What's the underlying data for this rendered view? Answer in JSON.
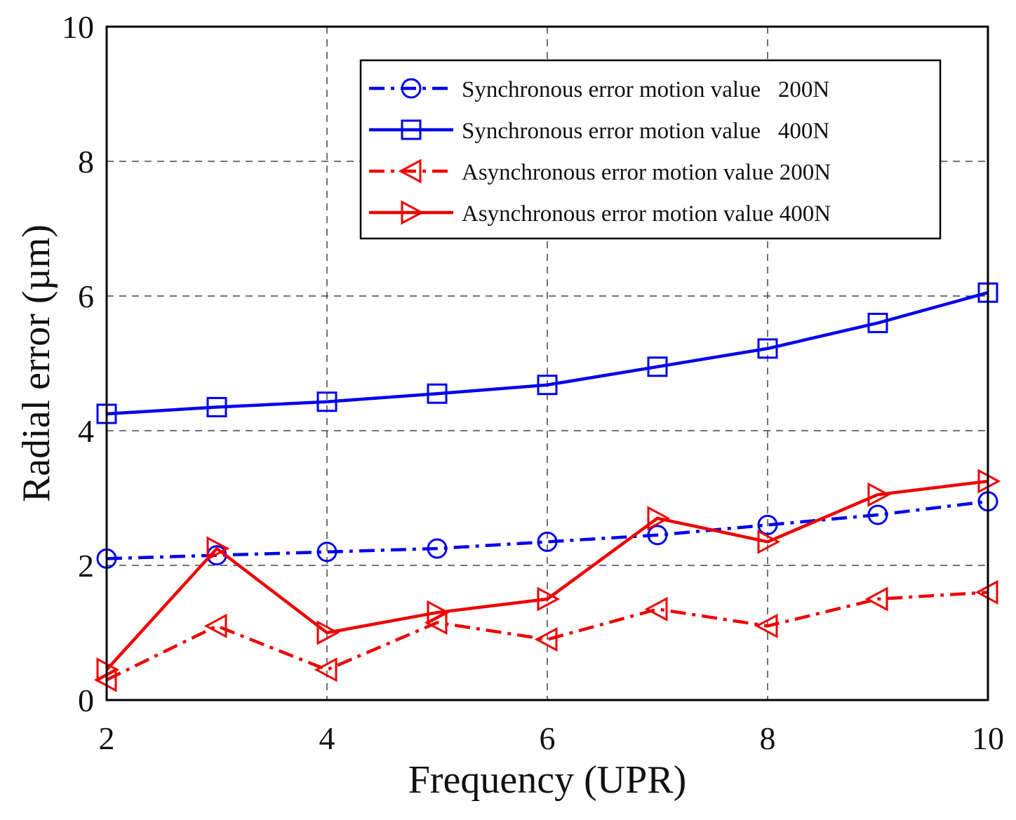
{
  "chart_data": {
    "type": "line",
    "title": "",
    "xlabel": "Frequency (UPR)",
    "ylabel": "Radial error (µm)",
    "xlim": [
      2,
      10
    ],
    "ylim": [
      0,
      10
    ],
    "xticks": [
      2,
      4,
      6,
      8,
      10
    ],
    "yticks": [
      0,
      2,
      4,
      6,
      8,
      10
    ],
    "grid": true,
    "legend_position": "top-right",
    "x": [
      2,
      3,
      4,
      5,
      6,
      7,
      8,
      9,
      10
    ],
    "series": [
      {
        "name": "Synchronous error motion value   200N",
        "values": [
          2.1,
          2.15,
          2.2,
          2.25,
          2.35,
          2.45,
          2.6,
          2.75,
          2.95
        ],
        "color": "#0000ee",
        "line_style": "dashdot",
        "marker": "circle"
      },
      {
        "name": "Synchronous error motion value   400N",
        "values": [
          4.25,
          4.35,
          4.43,
          4.55,
          4.68,
          4.95,
          5.22,
          5.6,
          6.05
        ],
        "color": "#0000ee",
        "line_style": "solid",
        "marker": "square"
      },
      {
        "name": "Asynchronous error motion value 200N",
        "values": [
          0.3,
          1.1,
          0.45,
          1.15,
          0.9,
          1.35,
          1.1,
          1.5,
          1.6
        ],
        "color": "#ee0000",
        "line_style": "dashdot",
        "marker": "triangle-left"
      },
      {
        "name": "Asynchronous error motion value 400N",
        "values": [
          0.45,
          2.25,
          1.0,
          1.3,
          1.5,
          2.7,
          2.35,
          3.05,
          3.25
        ],
        "color": "#ee0000",
        "line_style": "solid",
        "marker": "triangle-right"
      }
    ]
  }
}
